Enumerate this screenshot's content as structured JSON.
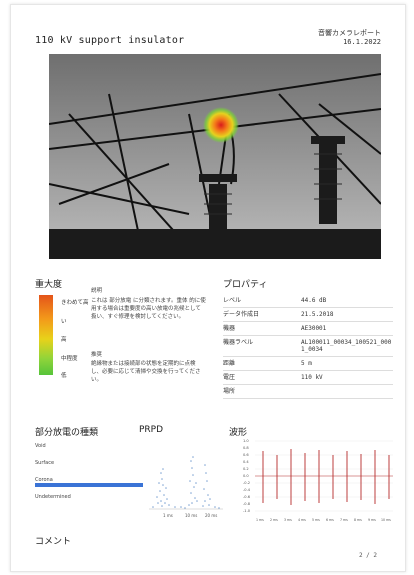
{
  "header": {
    "title": "110 kV support insulator",
    "report_label": "音響カメラレポート",
    "date": "16.1.2022"
  },
  "photo": {
    "alt": "substation insulator acoustic image"
  },
  "severity": {
    "title": "重大度",
    "levels": [
      "きわめて高",
      "い",
      "高",
      "中程度",
      "低"
    ],
    "desc_heading": "説明",
    "desc_text": "これは 部分放電 に分類されます。重体 的に使用する場合は重要度の高い放電の兆候として 扱い、すぐ修理を検討してください。",
    "action_heading": "推奨",
    "action_text": "絶縁物または接続部の状態を定期的に点検し、必要に応じて清掃や交換を行ってください。"
  },
  "properties": {
    "title": "プロパティ",
    "rows": [
      {
        "key": "レベル",
        "value": "44.6 dB"
      },
      {
        "key": "データ作成日",
        "value": "21.5.2018"
      },
      {
        "key": "機器",
        "value": "AE30001"
      },
      {
        "key": "機器ラベル",
        "value": "AL100011_00034_100521_0001_0034"
      },
      {
        "key": "距離",
        "value": "5 m"
      },
      {
        "key": "電圧",
        "value": "110 kV"
      },
      {
        "key": "場所",
        "value": ""
      }
    ]
  },
  "pd_type": {
    "title": "部分放電の種類",
    "labels": [
      "Void",
      "Surface",
      "Corona",
      "Undetermined"
    ]
  },
  "prpd": {
    "title": "PRPD",
    "ticks": [
      "1 ms",
      "10 ms",
      "20 ms"
    ]
  },
  "waveform": {
    "title": "波形",
    "y_ticks": [
      "1.0",
      "0.8",
      "0.6",
      "0.4",
      "0.2",
      "0.0",
      "-0.2",
      "-0.4",
      "-0.6",
      "-0.8",
      "-1.0"
    ],
    "x_ticks": [
      "1 ms",
      "2 ms",
      "3 ms",
      "4 ms",
      "5 ms",
      "6 ms",
      "7 ms",
      "8 ms",
      "9 ms",
      "10 ms"
    ]
  },
  "comment": {
    "title": "コメント"
  },
  "page_number": "2 / 2"
}
